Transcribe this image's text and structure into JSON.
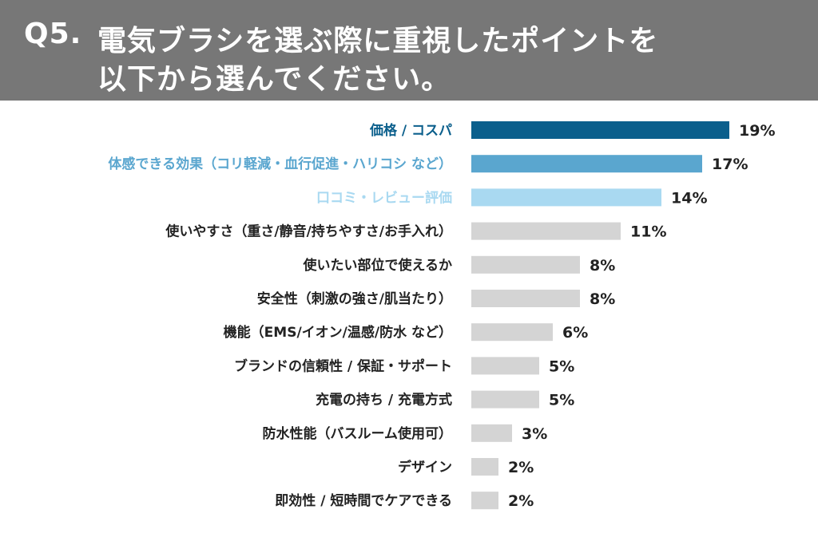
{
  "header": {
    "number": "Q5.",
    "title_line1": "電気ブラシを選ぶ際に重視したポイントを",
    "title_line2": "以下から選んでください。"
  },
  "chart_data": {
    "type": "bar",
    "orientation": "horizontal",
    "categories": [
      "価格 / コスパ",
      "体感できる効果（コリ軽減・血行促進・ハリコシ など）",
      "口コミ・レビュー評価",
      "使いやすさ（重さ/静音/持ちやすさ/お手入れ）",
      "使いたい部位で使えるか",
      "安全性（刺激の強さ/肌当たり）",
      "機能（EMS/イオン/温感/防水 など）",
      "ブランドの信頼性 / 保証・サポート",
      "充電の持ち / 充電方式",
      "防水性能（バスルーム使用可）",
      "デザイン",
      "即効性 / 短時間でケアできる"
    ],
    "values": [
      19,
      17,
      14,
      11,
      8,
      8,
      6,
      5,
      5,
      3,
      2,
      2
    ],
    "value_labels": [
      "19%",
      "17%",
      "14%",
      "11%",
      "8%",
      "8%",
      "6%",
      "5%",
      "5%",
      "3%",
      "2%",
      "2%"
    ],
    "unit": "%",
    "colors": [
      "#0b5f8c",
      "#5aa6cf",
      "#a9d9f1",
      "#d4d4d4",
      "#d4d4d4",
      "#d4d4d4",
      "#d4d4d4",
      "#d4d4d4",
      "#d4d4d4",
      "#d4d4d4",
      "#d4d4d4",
      "#d4d4d4"
    ],
    "label_colors": [
      "#0b5f8c",
      "#5aa6cf",
      "#a9d9f1",
      "#222222",
      "#222222",
      "#222222",
      "#222222",
      "#222222",
      "#222222",
      "#222222",
      "#222222",
      "#222222"
    ],
    "grid": false,
    "axes_visible": false
  }
}
